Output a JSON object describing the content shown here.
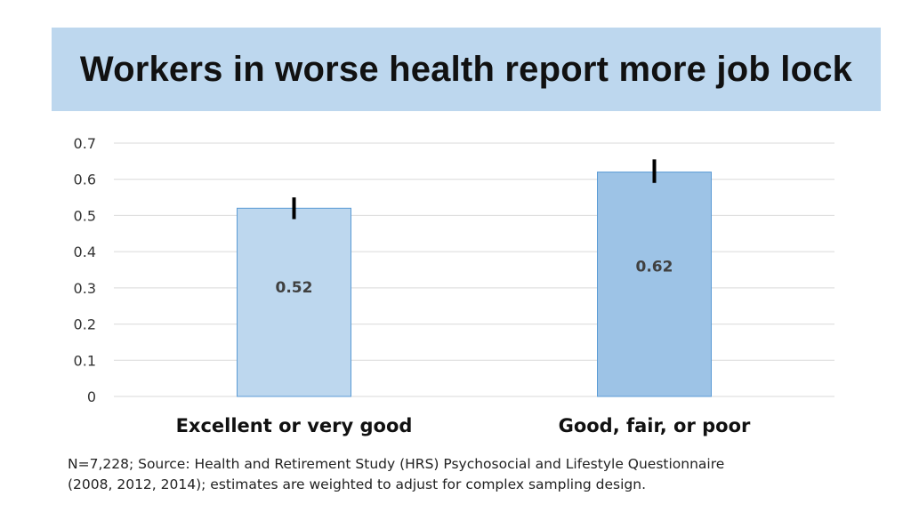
{
  "title": "Workers in worse health report more job lock",
  "chart_data": {
    "type": "bar",
    "categories": [
      "Excellent or very good",
      "Good, fair, or poor"
    ],
    "values": [
      0.52,
      0.62
    ],
    "data_labels": [
      "0.52",
      "0.62"
    ],
    "error_bars": [
      [
        0.49,
        0.55
      ],
      [
        0.59,
        0.655
      ]
    ],
    "yticks": [
      "0",
      "0.1",
      "0.2",
      "0.3",
      "0.4",
      "0.5",
      "0.6",
      "0.7"
    ],
    "ylim": [
      0,
      0.7
    ],
    "grid": true,
    "colors": [
      "#bdd7ee",
      "#9dc3e6"
    ],
    "bar_border": "#5b9bd5"
  },
  "footnote": {
    "line1": "N=7,228; Source: Health and Retirement Study (HRS) Psychosocial and Lifestyle Questionnaire",
    "line2": "(2008, 2012, 2014); estimates are weighted to adjust for complex sampling design."
  }
}
